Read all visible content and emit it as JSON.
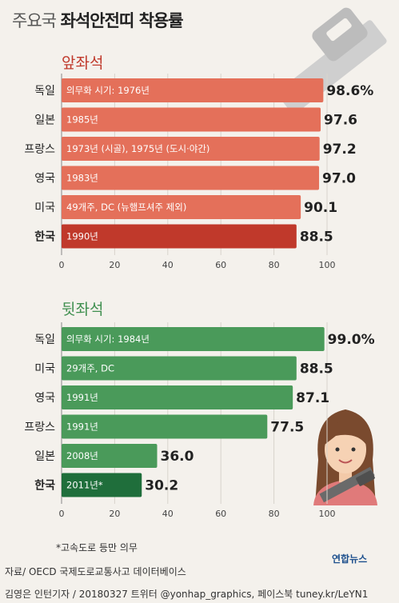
{
  "header": {
    "title_pre": "주요국",
    "title_main": "좌석안전띠 착용률"
  },
  "footer": {
    "note": "*고속도로 등만 의무",
    "source": "자료/ OECD 국제도로교통사고 데이터베이스",
    "credit": "김영은 인턴기자 / 20180327   트위터 @yonhap_graphics, 페이스북 tuney.kr/LeYN1",
    "logo": "연합뉴스"
  },
  "colors": {
    "front_bar": "#e4705a",
    "front_highlight": "#c0392b",
    "front_heading": "#c0392b",
    "back_bar": "#4a9a5a",
    "back_highlight": "#1f6e3b",
    "back_heading": "#3f8f4f",
    "background": "#f4f1ec"
  },
  "chart_data": [
    {
      "type": "bar",
      "orientation": "horizontal",
      "title": "앞좌석",
      "categories": [
        "독일",
        "일본",
        "프랑스",
        "영국",
        "미국",
        "한국"
      ],
      "values": [
        98.6,
        97.6,
        97.2,
        97.0,
        90.1,
        88.5
      ],
      "value_labels": [
        "98.6%",
        "97.6",
        "97.2",
        "97.0",
        "90.1",
        "88.5"
      ],
      "bar_notes": [
        "의무화 시기: 1976년",
        "1985년",
        "1973년 (시골), 1975년 (도시·야간)",
        "1983년",
        "49개주, DC (뉴햄프셔주 제외)",
        "1990년"
      ],
      "highlight": "한국",
      "xlim": [
        0,
        100
      ],
      "xticks": [
        0,
        20,
        40,
        60,
        80,
        100
      ]
    },
    {
      "type": "bar",
      "orientation": "horizontal",
      "title": "뒷좌석",
      "categories": [
        "독일",
        "미국",
        "영국",
        "프랑스",
        "일본",
        "한국"
      ],
      "values": [
        99.0,
        88.5,
        87.1,
        77.5,
        36.0,
        30.2
      ],
      "value_labels": [
        "99.0%",
        "88.5",
        "87.1",
        "77.5",
        "36.0",
        "30.2"
      ],
      "bar_notes": [
        "의무화 시기: 1984년",
        "29개주, DC",
        "1991년",
        "1991년",
        "2008년",
        "2011년*"
      ],
      "highlight": "한국",
      "xlim": [
        0,
        100
      ],
      "xticks": [
        0,
        20,
        40,
        60,
        80,
        100
      ]
    }
  ]
}
